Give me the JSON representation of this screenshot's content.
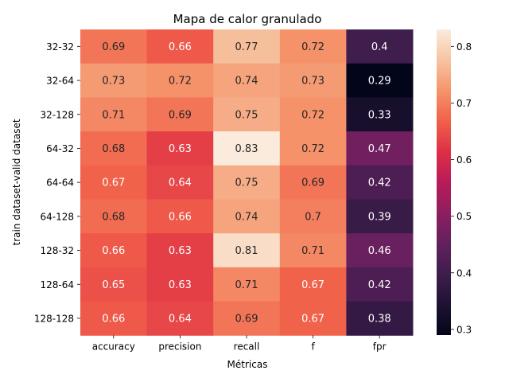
{
  "chart_data": {
    "type": "heatmap",
    "title": "Mapa de calor granulado",
    "xlabel": "Métricas",
    "ylabel": "train dataset-valid dataset",
    "columns": [
      "accuracy",
      "precision",
      "recall",
      "f",
      "fpr"
    ],
    "rows": [
      "32-32",
      "32-64",
      "32-128",
      "64-32",
      "64-64",
      "64-128",
      "128-32",
      "128-64",
      "128-128"
    ],
    "values": [
      [
        0.69,
        0.66,
        0.77,
        0.72,
        0.4
      ],
      [
        0.73,
        0.72,
        0.74,
        0.73,
        0.29
      ],
      [
        0.71,
        0.69,
        0.75,
        0.72,
        0.33
      ],
      [
        0.68,
        0.63,
        0.83,
        0.72,
        0.47
      ],
      [
        0.67,
        0.64,
        0.75,
        0.69,
        0.42
      ],
      [
        0.68,
        0.66,
        0.74,
        0.7,
        0.39
      ],
      [
        0.66,
        0.63,
        0.81,
        0.71,
        0.46
      ],
      [
        0.65,
        0.63,
        0.71,
        0.67,
        0.42
      ],
      [
        0.66,
        0.64,
        0.69,
        0.67,
        0.38
      ]
    ],
    "colorbar": {
      "colormap": "rocket",
      "range": [
        0.29,
        0.83
      ],
      "ticks": [
        0.3,
        0.4,
        0.5,
        0.6,
        0.7,
        0.8
      ]
    }
  }
}
